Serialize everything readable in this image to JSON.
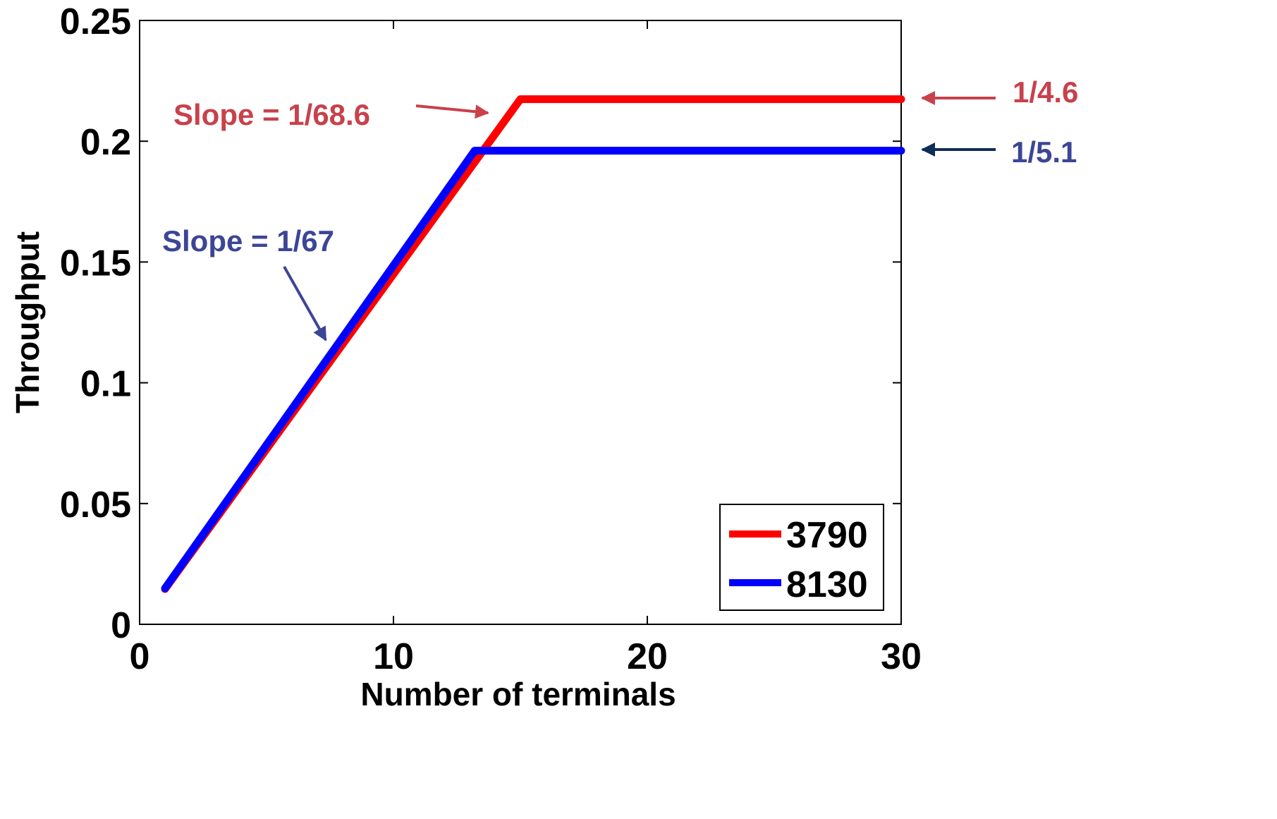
{
  "chart_data": {
    "type": "line",
    "xlabel": "Number of terminals",
    "ylabel": "Throughput",
    "xlim": [
      0,
      30
    ],
    "ylim": [
      0,
      0.25
    ],
    "xticks": [
      0,
      10,
      20,
      30
    ],
    "xtick_labels": [
      "0",
      "10",
      "20",
      "30"
    ],
    "yticks": [
      0,
      0.05,
      0.1,
      0.15,
      0.2,
      0.25
    ],
    "ytick_labels": [
      "0",
      "0.05",
      "0.1",
      "0.15",
      "0.2",
      "0.25"
    ],
    "grid": false,
    "legend_position": "bottom-right",
    "series": [
      {
        "name": "3790",
        "color": "#ff0000",
        "x": [
          1,
          15,
          30
        ],
        "y": [
          0.0146,
          0.2174,
          0.2174
        ]
      },
      {
        "name": "8130",
        "color": "#0000ff",
        "x": [
          1,
          13.2,
          30
        ],
        "y": [
          0.0149,
          0.1961,
          0.1961
        ]
      }
    ],
    "annotations": [
      {
        "id": "slope_red",
        "text": "Slope = 1/68.6",
        "color": "#c8414b"
      },
      {
        "id": "slope_blue",
        "text": "Slope = 1/67",
        "color": "#3c4596"
      },
      {
        "id": "level_red",
        "text": "1/4.6",
        "color": "#c8414b"
      },
      {
        "id": "level_blue",
        "text": "1/5.1",
        "color": "#3c4596"
      }
    ]
  }
}
